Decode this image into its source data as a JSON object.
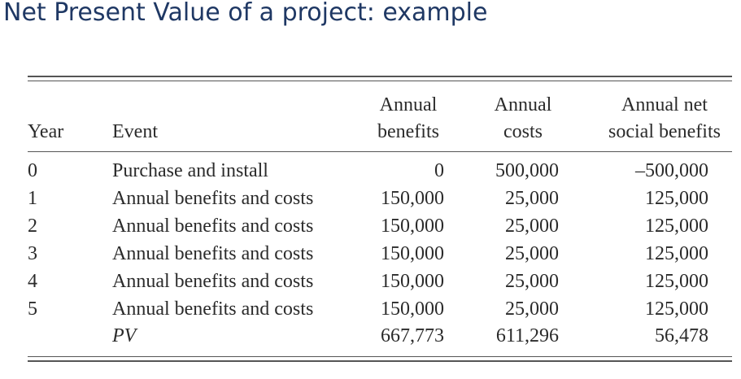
{
  "title": "Net Present Value of a project: example",
  "table": {
    "headers": {
      "year": "Year",
      "event": "Event",
      "benefits_line1": "Annual",
      "benefits_line2": "benefits",
      "costs_line1": "Annual",
      "costs_line2": "costs",
      "net_line1": "Annual net",
      "net_line2": "social benefits"
    },
    "rows": [
      {
        "year": "0",
        "event": "Purchase and install",
        "benefits": "0",
        "costs": "500,000",
        "net": "–500,000"
      },
      {
        "year": "1",
        "event": "Annual benefits and costs",
        "benefits": "150,000",
        "costs": "25,000",
        "net": "125,000"
      },
      {
        "year": "2",
        "event": "Annual benefits and costs",
        "benefits": "150,000",
        "costs": "25,000",
        "net": "125,000"
      },
      {
        "year": "3",
        "event": "Annual benefits and costs",
        "benefits": "150,000",
        "costs": "25,000",
        "net": "125,000"
      },
      {
        "year": "4",
        "event": "Annual benefits and costs",
        "benefits": "150,000",
        "costs": "25,000",
        "net": "125,000"
      },
      {
        "year": "5",
        "event": "Annual benefits and costs",
        "benefits": "150,000",
        "costs": "25,000",
        "net": "125,000"
      }
    ],
    "pv_row": {
      "label": "PV",
      "benefits": "667,773",
      "costs": "611,296",
      "net": "56,478"
    }
  }
}
